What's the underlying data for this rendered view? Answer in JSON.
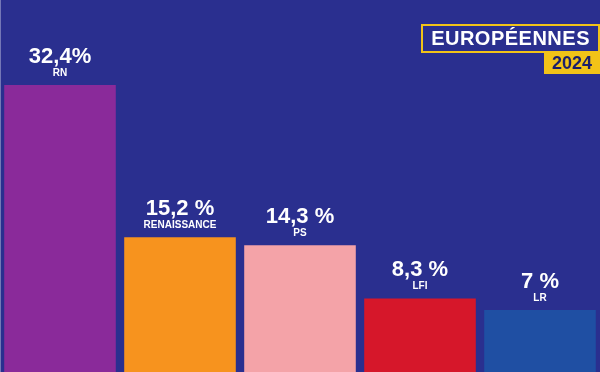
{
  "chart_data": {
    "type": "bar",
    "title": "EUROPÉENNES",
    "subtitle": "2024",
    "categories": [
      "RN",
      "RENAISSANCE",
      "PS",
      "LFI",
      "LR"
    ],
    "values": [
      32.4,
      15.2,
      14.3,
      8.3,
      7
    ],
    "value_labels": [
      "32,4%",
      "15,2 %",
      "14,3 %",
      "8,3 %",
      "7 %"
    ],
    "colors": [
      "#8a2a9a",
      "#f7931e",
      "#f4a3a8",
      "#d6172a",
      "#1f4fa3"
    ],
    "ylim": [
      0,
      42
    ],
    "grid": false,
    "data_labels": true,
    "tick_labels": false
  }
}
